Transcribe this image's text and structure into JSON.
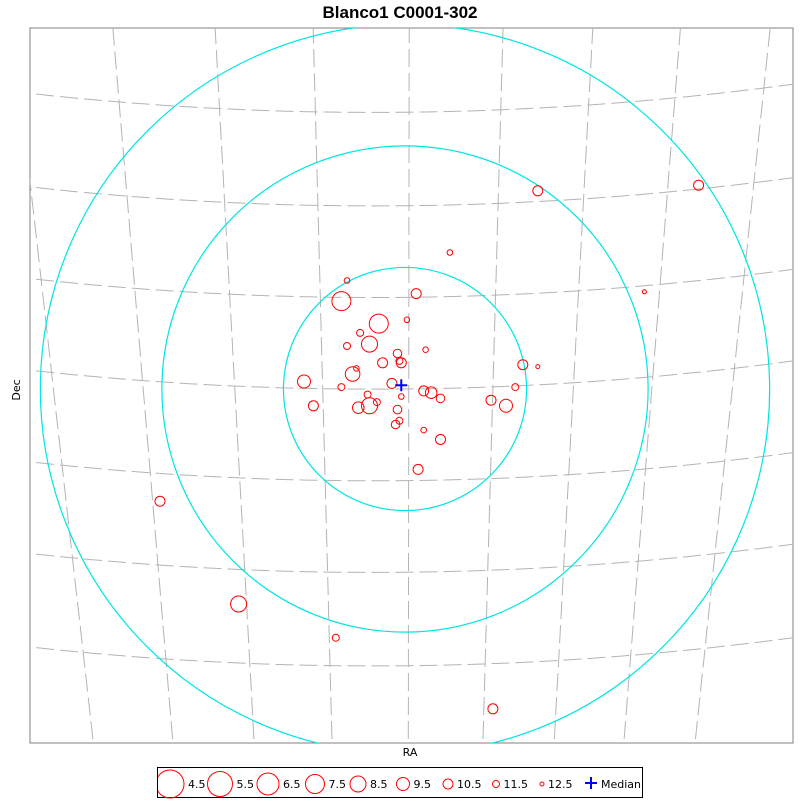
{
  "chart_data": {
    "type": "scatter",
    "title": "Blanco1  C0001-302",
    "xlabel": "RA",
    "ylabel": "Dec",
    "xlim": [
      -1.9,
      1.9
    ],
    "ylim": [
      -1.9,
      1.9
    ],
    "grid": true,
    "legend_placement": "bottom",
    "circles": [
      0.65,
      1.3,
      1.95
    ],
    "median": {
      "x": -0.02,
      "y": 0.02,
      "label": "Median"
    },
    "legend": [
      {
        "label": "4.5",
        "mag": 4.5
      },
      {
        "label": "5.5",
        "mag": 5.5
      },
      {
        "label": "6.5",
        "mag": 6.5
      },
      {
        "label": "7.5",
        "mag": 7.5
      },
      {
        "label": "8.5",
        "mag": 8.5
      },
      {
        "label": "9.5",
        "mag": 9.5
      },
      {
        "label": "10.5",
        "mag": 10.5
      },
      {
        "label": "11.5",
        "mag": 11.5
      },
      {
        "label": "12.5",
        "mag": 12.5
      }
    ],
    "stars": [
      {
        "x": 0.71,
        "y": 1.06,
        "mag": 10.5
      },
      {
        "x": 1.57,
        "y": 1.09,
        "mag": 10.5
      },
      {
        "x": 0.24,
        "y": 0.73,
        "mag": 12.0
      },
      {
        "x": 1.28,
        "y": 0.52,
        "mag": 12.5
      },
      {
        "x": -0.31,
        "y": 0.58,
        "mag": 12.0
      },
      {
        "x": 0.06,
        "y": 0.51,
        "mag": 10.5
      },
      {
        "x": -0.34,
        "y": 0.47,
        "mag": 7.5
      },
      {
        "x": 0.01,
        "y": 0.37,
        "mag": 12.0
      },
      {
        "x": -0.14,
        "y": 0.35,
        "mag": 7.5
      },
      {
        "x": -0.24,
        "y": 0.3,
        "mag": 11.5
      },
      {
        "x": -0.19,
        "y": 0.24,
        "mag": 8.5
      },
      {
        "x": -0.31,
        "y": 0.23,
        "mag": 11.5
      },
      {
        "x": 0.11,
        "y": 0.21,
        "mag": 12.0
      },
      {
        "x": -0.04,
        "y": 0.19,
        "mag": 11.0
      },
      {
        "x": -0.02,
        "y": 0.14,
        "mag": 10.5
      },
      {
        "x": -0.03,
        "y": 0.15,
        "mag": 11.5
      },
      {
        "x": -0.12,
        "y": 0.14,
        "mag": 10.5
      },
      {
        "x": 0.63,
        "y": 0.13,
        "mag": 10.5
      },
      {
        "x": 0.71,
        "y": 0.12,
        "mag": 12.5
      },
      {
        "x": -0.26,
        "y": 0.11,
        "mag": 12.0
      },
      {
        "x": -0.28,
        "y": 0.08,
        "mag": 9.0
      },
      {
        "x": -0.54,
        "y": 0.04,
        "mag": 9.5
      },
      {
        "x": -0.07,
        "y": 0.03,
        "mag": 10.5
      },
      {
        "x": 0.59,
        "y": 0.01,
        "mag": 11.5
      },
      {
        "x": -0.34,
        "y": 0.01,
        "mag": 11.5
      },
      {
        "x": 0.1,
        "y": -0.01,
        "mag": 10.5
      },
      {
        "x": 0.14,
        "y": -0.02,
        "mag": 10.0
      },
      {
        "x": -0.2,
        "y": -0.03,
        "mag": 11.5
      },
      {
        "x": 0.19,
        "y": -0.05,
        "mag": 11.0
      },
      {
        "x": -0.02,
        "y": -0.04,
        "mag": 12.0
      },
      {
        "x": 0.46,
        "y": -0.06,
        "mag": 10.5
      },
      {
        "x": -0.15,
        "y": -0.07,
        "mag": 11.5
      },
      {
        "x": -0.19,
        "y": -0.09,
        "mag": 8.5
      },
      {
        "x": -0.25,
        "y": -0.1,
        "mag": 10.0
      },
      {
        "x": -0.49,
        "y": -0.09,
        "mag": 10.5
      },
      {
        "x": 0.54,
        "y": -0.09,
        "mag": 9.5
      },
      {
        "x": -0.04,
        "y": -0.11,
        "mag": 11.0
      },
      {
        "x": -0.03,
        "y": -0.17,
        "mag": 11.5
      },
      {
        "x": -0.05,
        "y": -0.19,
        "mag": 11.0
      },
      {
        "x": 0.1,
        "y": -0.22,
        "mag": 12.0
      },
      {
        "x": 0.19,
        "y": -0.27,
        "mag": 10.5
      },
      {
        "x": 0.07,
        "y": -0.43,
        "mag": 10.5
      },
      {
        "x": -1.31,
        "y": -0.6,
        "mag": 10.5
      },
      {
        "x": -0.89,
        "y": -1.15,
        "mag": 8.5
      },
      {
        "x": -0.37,
        "y": -1.33,
        "mag": 11.5
      },
      {
        "x": 0.47,
        "y": -1.71,
        "mag": 10.5
      }
    ]
  },
  "colors": {
    "star": "#ff0000",
    "circle": "#00e5e5",
    "grid": "#b4b4b4",
    "median": "#0000ff"
  }
}
